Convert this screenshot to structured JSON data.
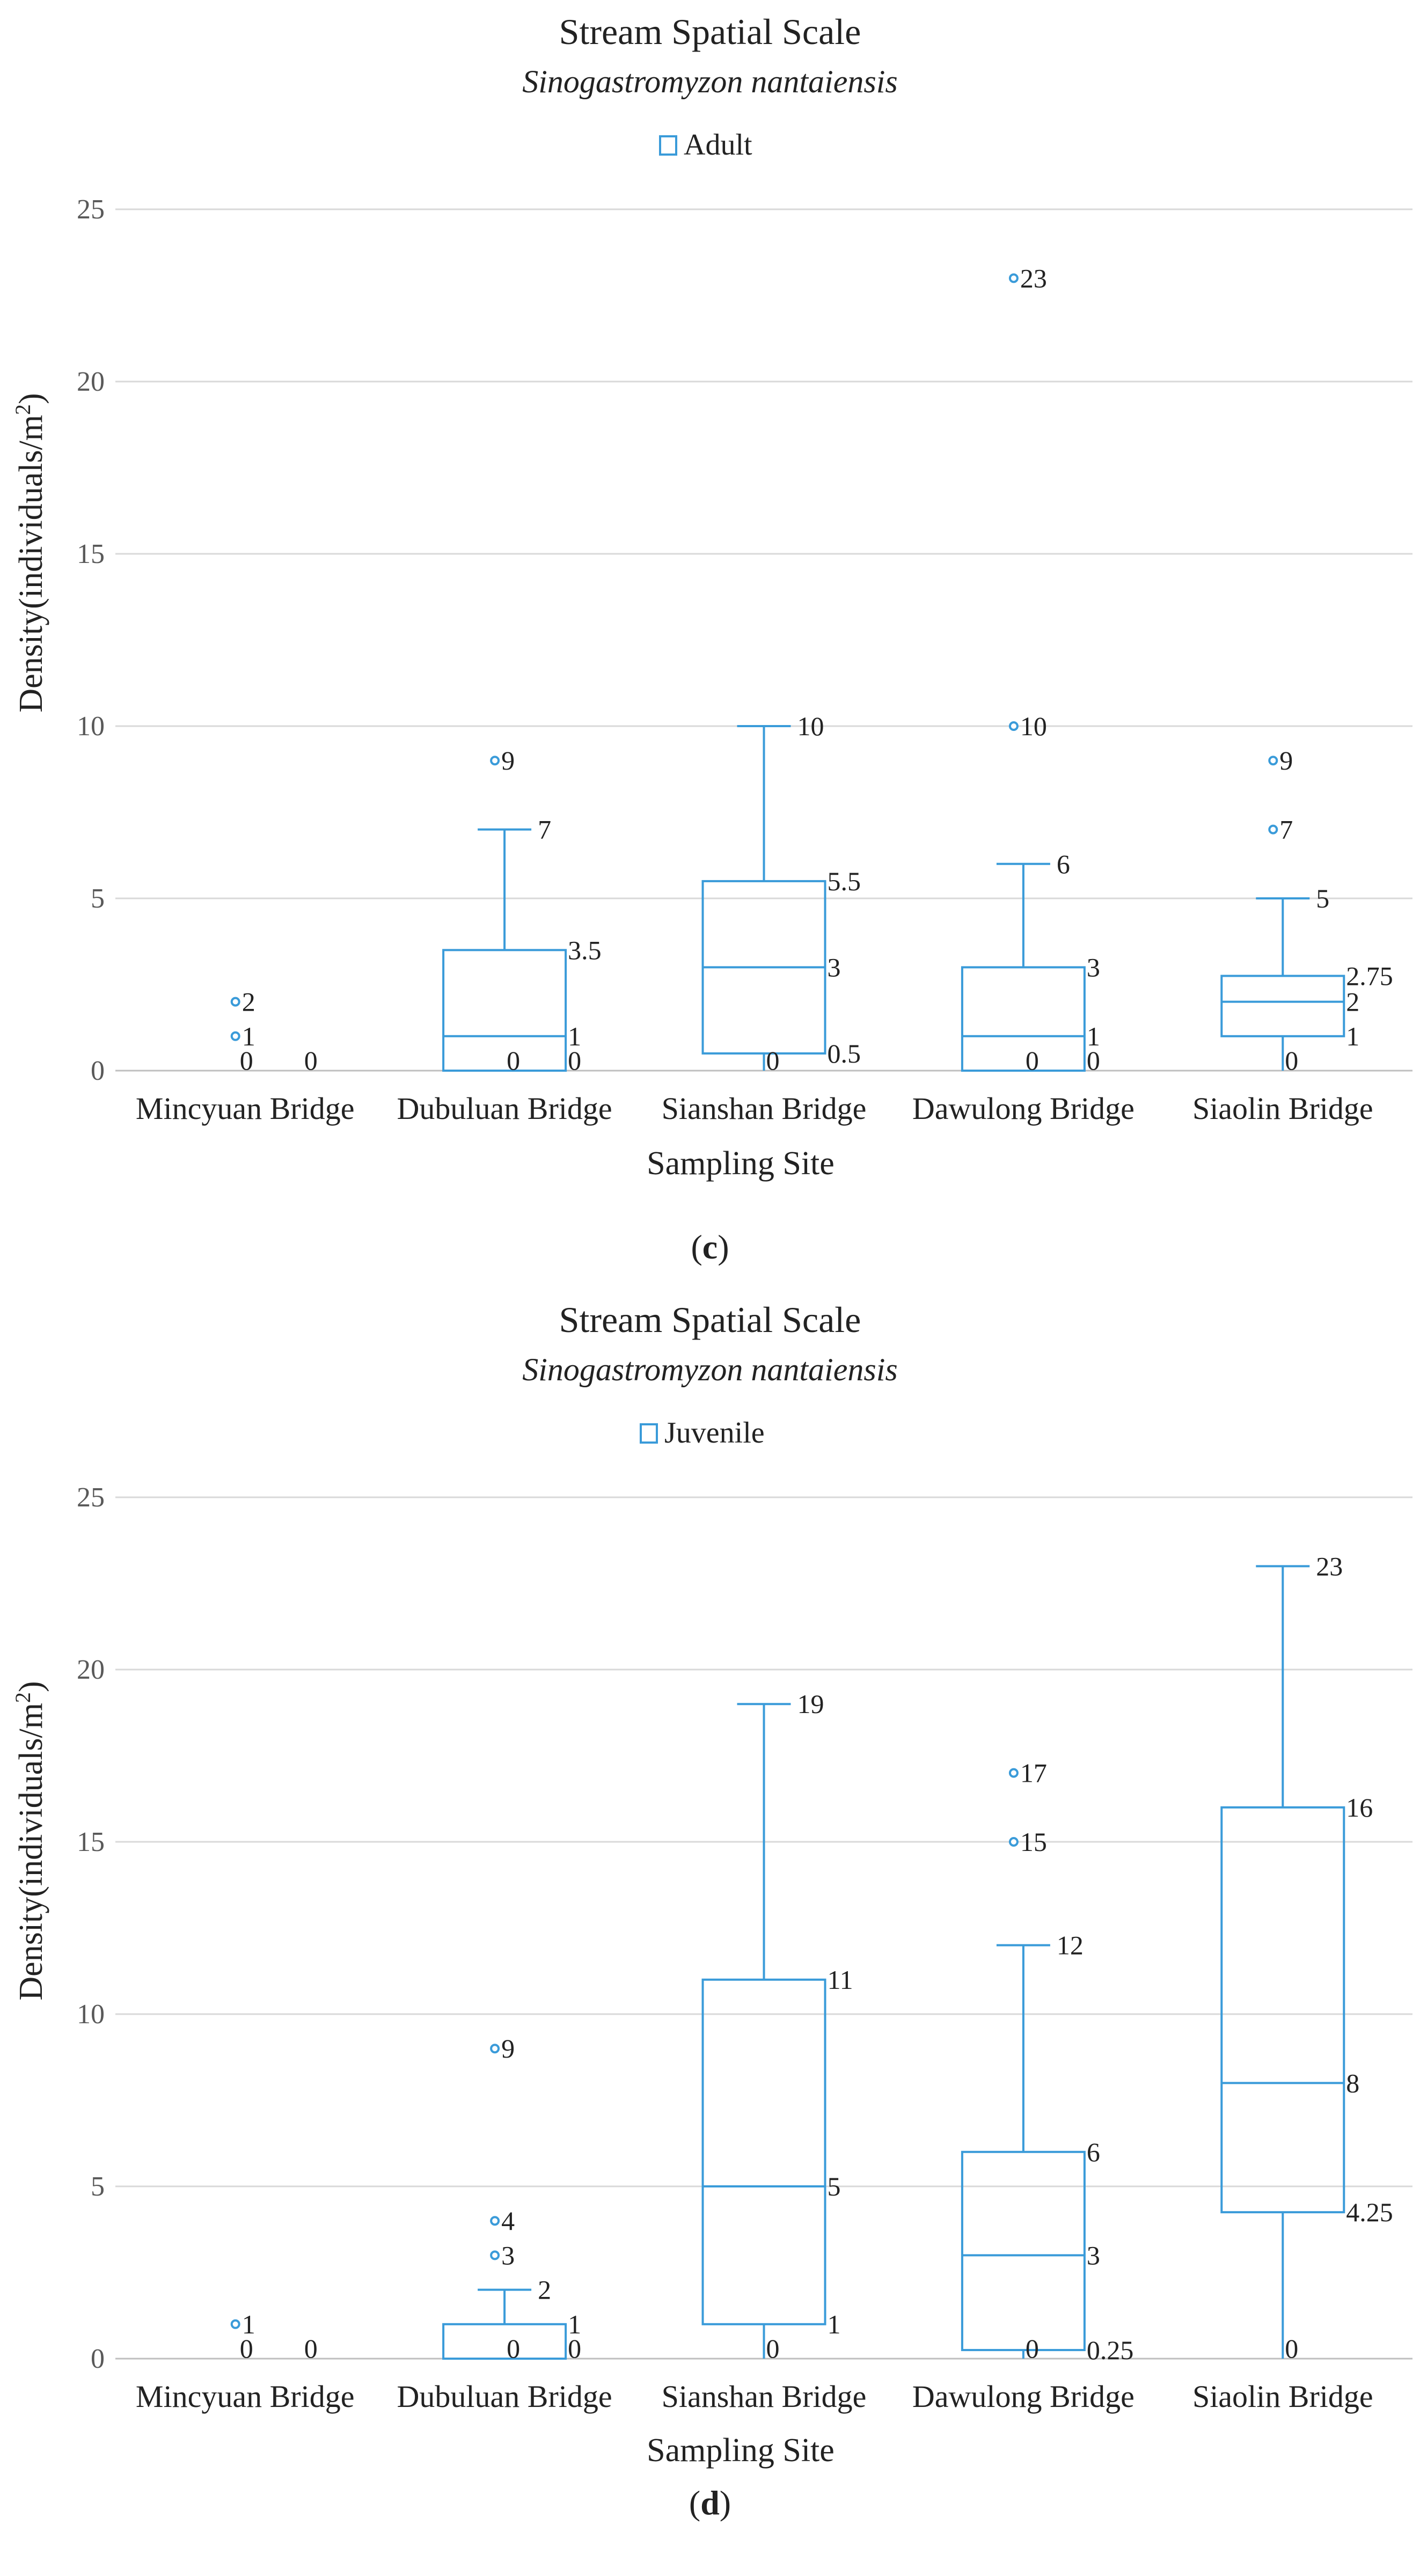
{
  "chart_data": [
    {
      "type": "box",
      "title": "Stream Spatial Scale",
      "subtitle": "Sinogastromyzon nantaiensis",
      "legend": [
        "Adult"
      ],
      "xlabel": "Sampling Site",
      "ylabel_main": "Density(individuals/m",
      "ylabel_sup": "2",
      "ylabel_end": ")",
      "ylim": [
        0,
        25
      ],
      "yticks": [
        0,
        5,
        10,
        15,
        20,
        25
      ],
      "yticks_labels": [
        "0",
        "5",
        "10",
        "15",
        "20",
        "25"
      ],
      "color": "#3a9bd9",
      "panel_label": {
        "open": "(",
        "letter": "c",
        "close": ")"
      },
      "categories": [
        "Mincyuan Bridge",
        "Dubuluan Bridge",
        "Sianshan Bridge",
        "Dawulong Bridge",
        "Siaolin Bridge"
      ],
      "boxes": [
        {
          "site": "Mincyuan Bridge",
          "q1": 0,
          "median": 0,
          "q3": 0,
          "whisker_low": 0,
          "whisker_high": 0,
          "outliers": [
            2,
            1
          ],
          "labels": [
            {
              "text": "2",
              "v": 2,
              "pos": "outlier"
            },
            {
              "text": "1",
              "v": 1,
              "pos": "outlier"
            },
            {
              "text": "0",
              "v": 0,
              "pos": "mid"
            },
            {
              "text": "0",
              "v": 0,
              "pos": "right"
            }
          ]
        },
        {
          "site": "Dubuluan Bridge",
          "q1": 0,
          "median": 1,
          "q3": 3.5,
          "whisker_low": 0,
          "whisker_high": 7,
          "outliers": [
            9
          ],
          "labels": [
            {
              "text": "9",
              "v": 9,
              "pos": "outlier"
            },
            {
              "text": "7",
              "v": 7,
              "pos": "whisker"
            },
            {
              "text": "3.5",
              "v": 3.5,
              "pos": "right"
            },
            {
              "text": "1",
              "v": 1,
              "pos": "right"
            },
            {
              "text": "0",
              "v": 0,
              "pos": "mid"
            },
            {
              "text": "0",
              "v": 0,
              "pos": "right"
            }
          ]
        },
        {
          "site": "Sianshan Bridge",
          "q1": 0.5,
          "median": 3,
          "q3": 5.5,
          "whisker_low": 0,
          "whisker_high": 10,
          "outliers": [],
          "labels": [
            {
              "text": "10",
              "v": 10,
              "pos": "whisker"
            },
            {
              "text": "5.5",
              "v": 5.5,
              "pos": "right"
            },
            {
              "text": "3",
              "v": 3,
              "pos": "right"
            },
            {
              "text": "0",
              "v": 0,
              "pos": "mid"
            },
            {
              "text": "0.5",
              "v": 0.5,
              "pos": "right"
            }
          ]
        },
        {
          "site": "Dawulong Bridge",
          "q1": 0,
          "median": 1,
          "q3": 3,
          "whisker_low": 0,
          "whisker_high": 6,
          "outliers": [
            23,
            10
          ],
          "labels": [
            {
              "text": "23",
              "v": 23,
              "pos": "outlier"
            },
            {
              "text": "10",
              "v": 10,
              "pos": "outlier"
            },
            {
              "text": "6",
              "v": 6,
              "pos": "whisker"
            },
            {
              "text": "3",
              "v": 3,
              "pos": "right"
            },
            {
              "text": "1",
              "v": 1,
              "pos": "right"
            },
            {
              "text": "0",
              "v": 0,
              "pos": "mid"
            },
            {
              "text": "0",
              "v": 0,
              "pos": "right"
            }
          ]
        },
        {
          "site": "Siaolin Bridge",
          "q1": 1,
          "median": 2,
          "q3": 2.75,
          "whisker_low": 0,
          "whisker_high": 5,
          "outliers": [
            9,
            7
          ],
          "labels": [
            {
              "text": "9",
              "v": 9,
              "pos": "outlier"
            },
            {
              "text": "7",
              "v": 7,
              "pos": "outlier"
            },
            {
              "text": "5",
              "v": 5,
              "pos": "whisker"
            },
            {
              "text": "2.75",
              "v": 2.75,
              "pos": "right"
            },
            {
              "text": "2",
              "v": 2,
              "pos": "right"
            },
            {
              "text": "1",
              "v": 1,
              "pos": "right"
            },
            {
              "text": "0",
              "v": 0,
              "pos": "mid"
            }
          ]
        }
      ]
    },
    {
      "type": "box",
      "title": "Stream Spatial Scale",
      "subtitle": "Sinogastromyzon nantaiensis",
      "legend": [
        "Juvenile"
      ],
      "xlabel": "Sampling Site",
      "ylabel_main": "Density(individuals/m",
      "ylabel_sup": "2",
      "ylabel_end": ")",
      "ylim": [
        0,
        25
      ],
      "yticks": [
        0,
        5,
        10,
        15,
        20,
        25
      ],
      "yticks_labels": [
        "0",
        "5",
        "10",
        "15",
        "20",
        "25"
      ],
      "color": "#3a9bd9",
      "panel_label": {
        "open": "(",
        "letter": "d",
        "close": ")"
      },
      "categories": [
        "Mincyuan Bridge",
        "Dubuluan Bridge",
        "Sianshan Bridge",
        "Dawulong Bridge",
        "Siaolin Bridge"
      ],
      "boxes": [
        {
          "site": "Mincyuan Bridge",
          "q1": 0,
          "median": 0,
          "q3": 0,
          "whisker_low": 0,
          "whisker_high": 0,
          "outliers": [
            1
          ],
          "labels": [
            {
              "text": "1",
              "v": 1,
              "pos": "outlier"
            },
            {
              "text": "0",
              "v": 0,
              "pos": "mid"
            },
            {
              "text": "0",
              "v": 0,
              "pos": "right"
            }
          ]
        },
        {
          "site": "Dubuluan Bridge",
          "q1": 0,
          "median": 0,
          "q3": 1,
          "whisker_low": 0,
          "whisker_high": 2,
          "outliers": [
            9,
            4,
            3
          ],
          "labels": [
            {
              "text": "9",
              "v": 9,
              "pos": "outlier"
            },
            {
              "text": "4",
              "v": 4,
              "pos": "outlier"
            },
            {
              "text": "3",
              "v": 3,
              "pos": "outlier"
            },
            {
              "text": "2",
              "v": 2,
              "pos": "whisker"
            },
            {
              "text": "1",
              "v": 1,
              "pos": "right"
            },
            {
              "text": "0",
              "v": 0,
              "pos": "mid"
            },
            {
              "text": "0",
              "v": 0,
              "pos": "right"
            }
          ]
        },
        {
          "site": "Sianshan Bridge",
          "q1": 1,
          "median": 5,
          "q3": 11,
          "whisker_low": 0,
          "whisker_high": 19,
          "outliers": [],
          "labels": [
            {
              "text": "19",
              "v": 19,
              "pos": "whisker"
            },
            {
              "text": "11",
              "v": 11,
              "pos": "right"
            },
            {
              "text": "5",
              "v": 5,
              "pos": "right"
            },
            {
              "text": "1",
              "v": 1,
              "pos": "right"
            },
            {
              "text": "0",
              "v": 0,
              "pos": "mid"
            }
          ]
        },
        {
          "site": "Dawulong Bridge",
          "q1": 0.25,
          "median": 3,
          "q3": 6,
          "whisker_low": 0,
          "whisker_high": 12,
          "outliers": [
            17,
            15
          ],
          "labels": [
            {
              "text": "17",
              "v": 17,
              "pos": "outlier"
            },
            {
              "text": "15",
              "v": 15,
              "pos": "outlier"
            },
            {
              "text": "12",
              "v": 12,
              "pos": "whisker"
            },
            {
              "text": "6",
              "v": 6,
              "pos": "right"
            },
            {
              "text": "3",
              "v": 3,
              "pos": "right"
            },
            {
              "text": "0",
              "v": 0,
              "pos": "mid"
            },
            {
              "text": "0.25",
              "v": 0.25,
              "pos": "right"
            }
          ]
        },
        {
          "site": "Siaolin Bridge",
          "q1": 4.25,
          "median": 8,
          "q3": 16,
          "whisker_low": 0,
          "whisker_high": 23,
          "outliers": [],
          "labels": [
            {
              "text": "23",
              "v": 23,
              "pos": "whisker"
            },
            {
              "text": "16",
              "v": 16,
              "pos": "right"
            },
            {
              "text": "8",
              "v": 8,
              "pos": "right"
            },
            {
              "text": "4.25",
              "v": 4.25,
              "pos": "right"
            },
            {
              "text": "0",
              "v": 0,
              "pos": "mid"
            }
          ]
        }
      ]
    }
  ]
}
